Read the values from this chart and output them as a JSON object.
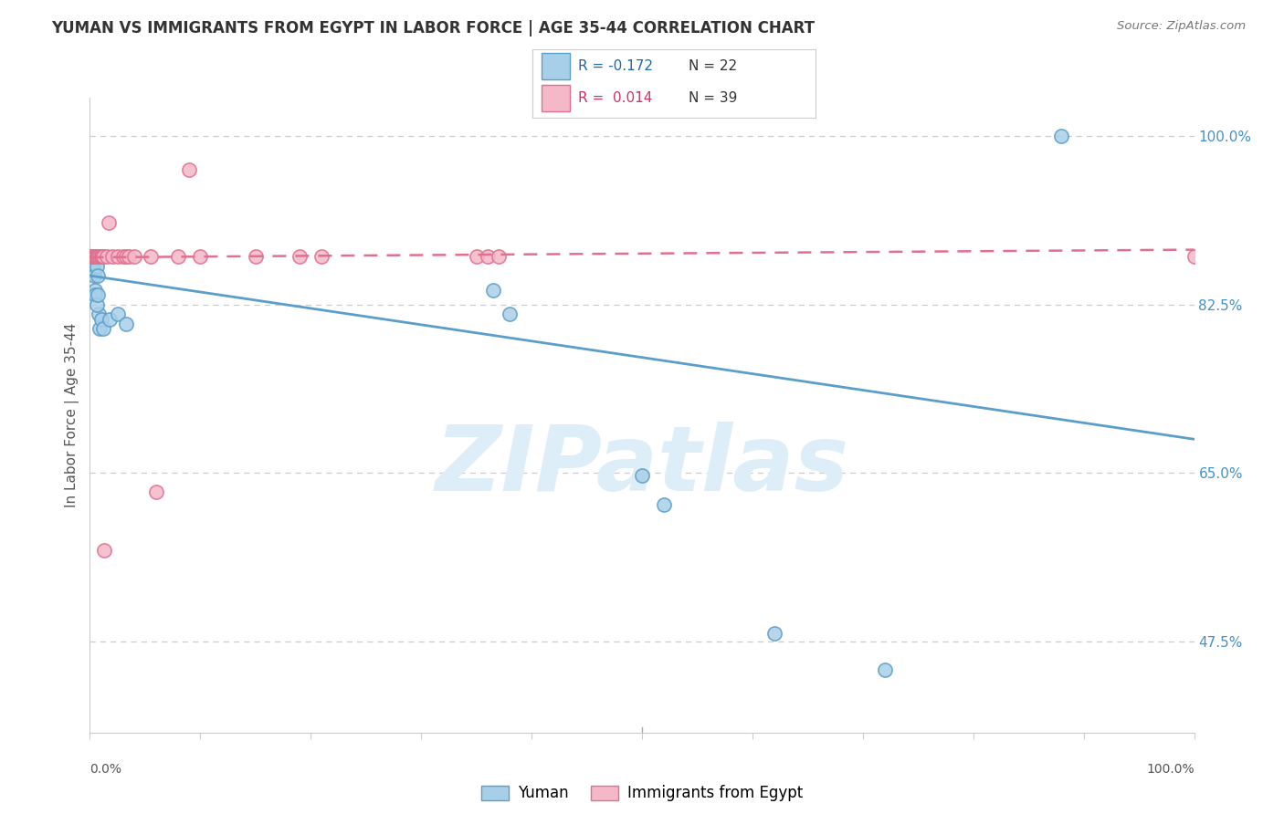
{
  "title": "YUMAN VS IMMIGRANTS FROM EGYPT IN LABOR FORCE | AGE 35-44 CORRELATION CHART",
  "source": "Source: ZipAtlas.com",
  "ylabel": "In Labor Force | Age 35-44",
  "ytick_labels": [
    "100.0%",
    "82.5%",
    "65.0%",
    "47.5%"
  ],
  "ytick_values": [
    1.0,
    0.825,
    0.65,
    0.475
  ],
  "xlim": [
    0.0,
    1.0
  ],
  "ylim": [
    0.38,
    1.04
  ],
  "blue_scatter_x": [
    0.003,
    0.004,
    0.005,
    0.006,
    0.007,
    0.008,
    0.009,
    0.01,
    0.012,
    0.018,
    0.025,
    0.033,
    0.365,
    0.38,
    0.5,
    0.52,
    0.62,
    0.72,
    0.88,
    0.005,
    0.006,
    0.007
  ],
  "blue_scatter_y": [
    0.865,
    0.855,
    0.84,
    0.865,
    0.855,
    0.815,
    0.8,
    0.81,
    0.8,
    0.81,
    0.815,
    0.805,
    0.84,
    0.815,
    0.647,
    0.617,
    0.483,
    0.445,
    1.0,
    0.835,
    0.825,
    0.835
  ],
  "pink_scatter_x": [
    0.001,
    0.002,
    0.003,
    0.003,
    0.004,
    0.004,
    0.005,
    0.005,
    0.006,
    0.006,
    0.007,
    0.007,
    0.008,
    0.009,
    0.01,
    0.01,
    0.011,
    0.012,
    0.015,
    0.017,
    0.02,
    0.025,
    0.03,
    0.033,
    0.035,
    0.04,
    0.055,
    0.06,
    0.08,
    0.09,
    0.1,
    0.15,
    0.19,
    0.21,
    0.35,
    0.36,
    0.37,
    1.0,
    0.013
  ],
  "pink_scatter_y": [
    0.875,
    0.875,
    0.875,
    0.875,
    0.875,
    0.875,
    0.875,
    0.875,
    0.875,
    0.875,
    0.875,
    0.875,
    0.875,
    0.875,
    0.875,
    0.875,
    0.875,
    0.875,
    0.875,
    0.91,
    0.875,
    0.875,
    0.875,
    0.875,
    0.875,
    0.875,
    0.875,
    0.63,
    0.875,
    0.965,
    0.875,
    0.875,
    0.875,
    0.875,
    0.875,
    0.875,
    0.875,
    0.875,
    0.57
  ],
  "blue_R": -0.172,
  "blue_N": 22,
  "pink_R": 0.014,
  "pink_N": 39,
  "blue_line_y_start": 0.855,
  "blue_line_y_end": 0.685,
  "pink_line_y_start": 0.874,
  "pink_line_y_end": 0.882,
  "blue_color": "#a8cfe8",
  "blue_edge_color": "#5b9ec9",
  "blue_line_color": "#5b9ec9",
  "pink_color": "#f4b8c8",
  "pink_edge_color": "#e07090",
  "pink_line_color": "#e07090",
  "grid_color": "#cccccc",
  "background_color": "#ffffff",
  "watermark_color": "#ddeef8",
  "title_color": "#333333",
  "axis_label_color": "#4292c6",
  "legend_label_blue": "Yuman",
  "legend_label_pink": "Immigrants from Egypt"
}
